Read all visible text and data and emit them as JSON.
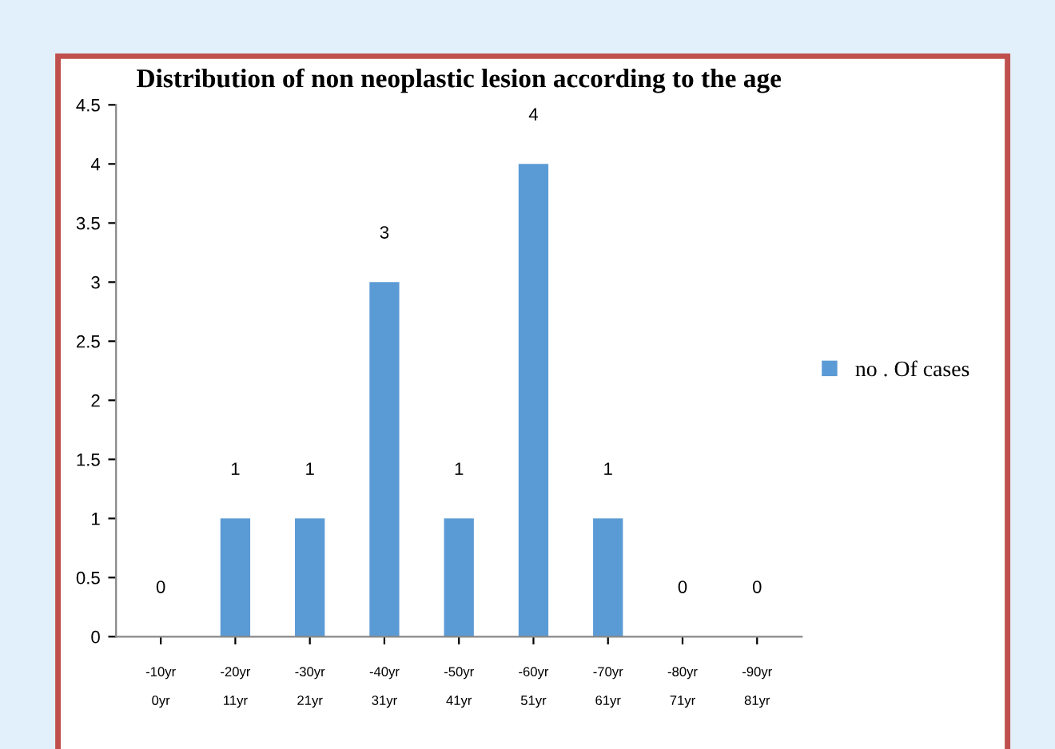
{
  "chart_data": {
    "type": "bar",
    "title": "Distribution of non neoplastic lesion according to the age",
    "categories": [
      "-10yr\n\n0yr",
      "-20yr\n\n11yr",
      "-30yr\n\n21yr",
      "-40yr\n\n31yr",
      "-50yr\n\n41yr",
      "-60yr\n\n51yr",
      "-70yr\n\n61yr",
      "-80yr\n\n71yr",
      "-90yr\n\n81yr"
    ],
    "series": [
      {
        "name": "no . Of cases",
        "color": "#5b9bd5",
        "values": [
          0,
          1,
          1,
          3,
          1,
          4,
          1,
          0,
          0
        ]
      }
    ],
    "ylim": [
      0,
      4.5
    ],
    "yticks": [
      0,
      0.5,
      1,
      1.5,
      2,
      2.5,
      3,
      3.5,
      4,
      4.5
    ],
    "data_labels": true,
    "grid": false,
    "legend": "right"
  }
}
